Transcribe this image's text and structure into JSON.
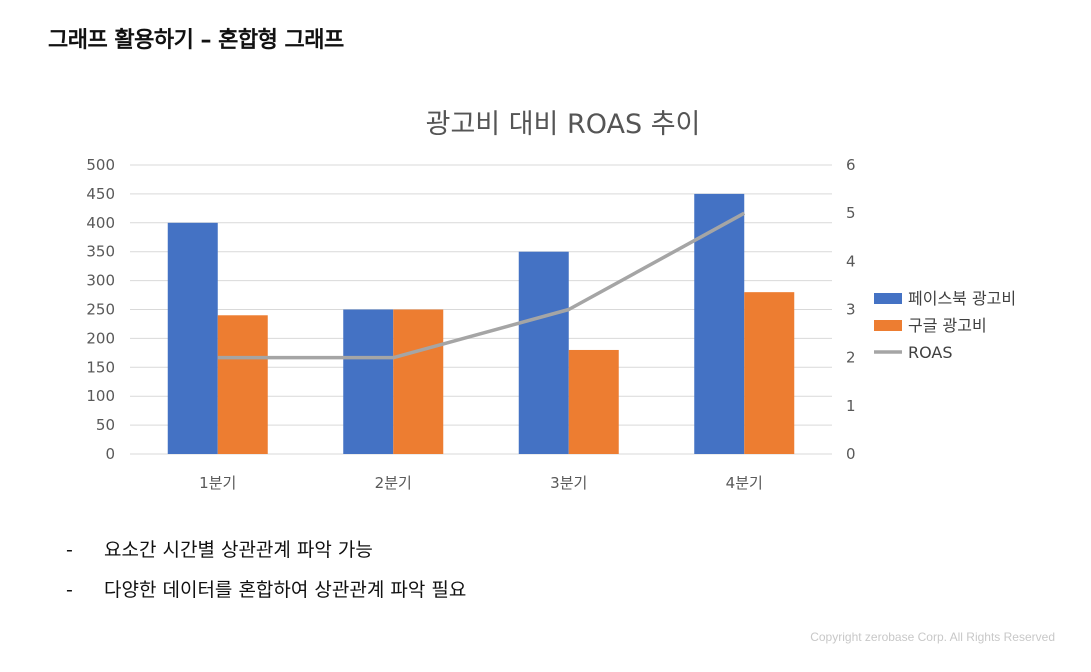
{
  "page": {
    "title": "그래프 활용하기 – 혼합형 그래프",
    "copyright": "Copyright zerobase Corp. All Rights Reserved"
  },
  "bullets": [
    {
      "dash": "-",
      "text": "요소간 시간별 상관관계 파악 가능"
    },
    {
      "dash": "-",
      "text": "다양한 데이터를 혼합하여 상관관계 파악 필요"
    }
  ],
  "chart_data": {
    "type": "bar",
    "title": "광고비 대비 ROAS 추이",
    "categories": [
      "1분기",
      "2분기",
      "3분기",
      "4분기"
    ],
    "series": [
      {
        "name": "페이스북 광고비",
        "type": "bar",
        "axis": "left",
        "color": "#4472C4",
        "values": [
          400,
          250,
          350,
          450
        ]
      },
      {
        "name": "구글 광고비",
        "type": "bar",
        "axis": "left",
        "color": "#ED7D31",
        "values": [
          240,
          250,
          180,
          280
        ]
      },
      {
        "name": "ROAS",
        "type": "line",
        "axis": "right",
        "color": "#A5A5A5",
        "values": [
          2,
          2,
          3,
          5
        ]
      }
    ],
    "ylim_left": [
      0,
      500
    ],
    "yticks_left": [
      "0",
      "50",
      "100",
      "150",
      "200",
      "250",
      "300",
      "350",
      "400",
      "450",
      "500"
    ],
    "ylim_right": [
      0,
      6
    ],
    "yticks_right": [
      "0",
      "1",
      "2",
      "3",
      "4",
      "5",
      "6"
    ],
    "grid": true,
    "legend_position": "right"
  }
}
